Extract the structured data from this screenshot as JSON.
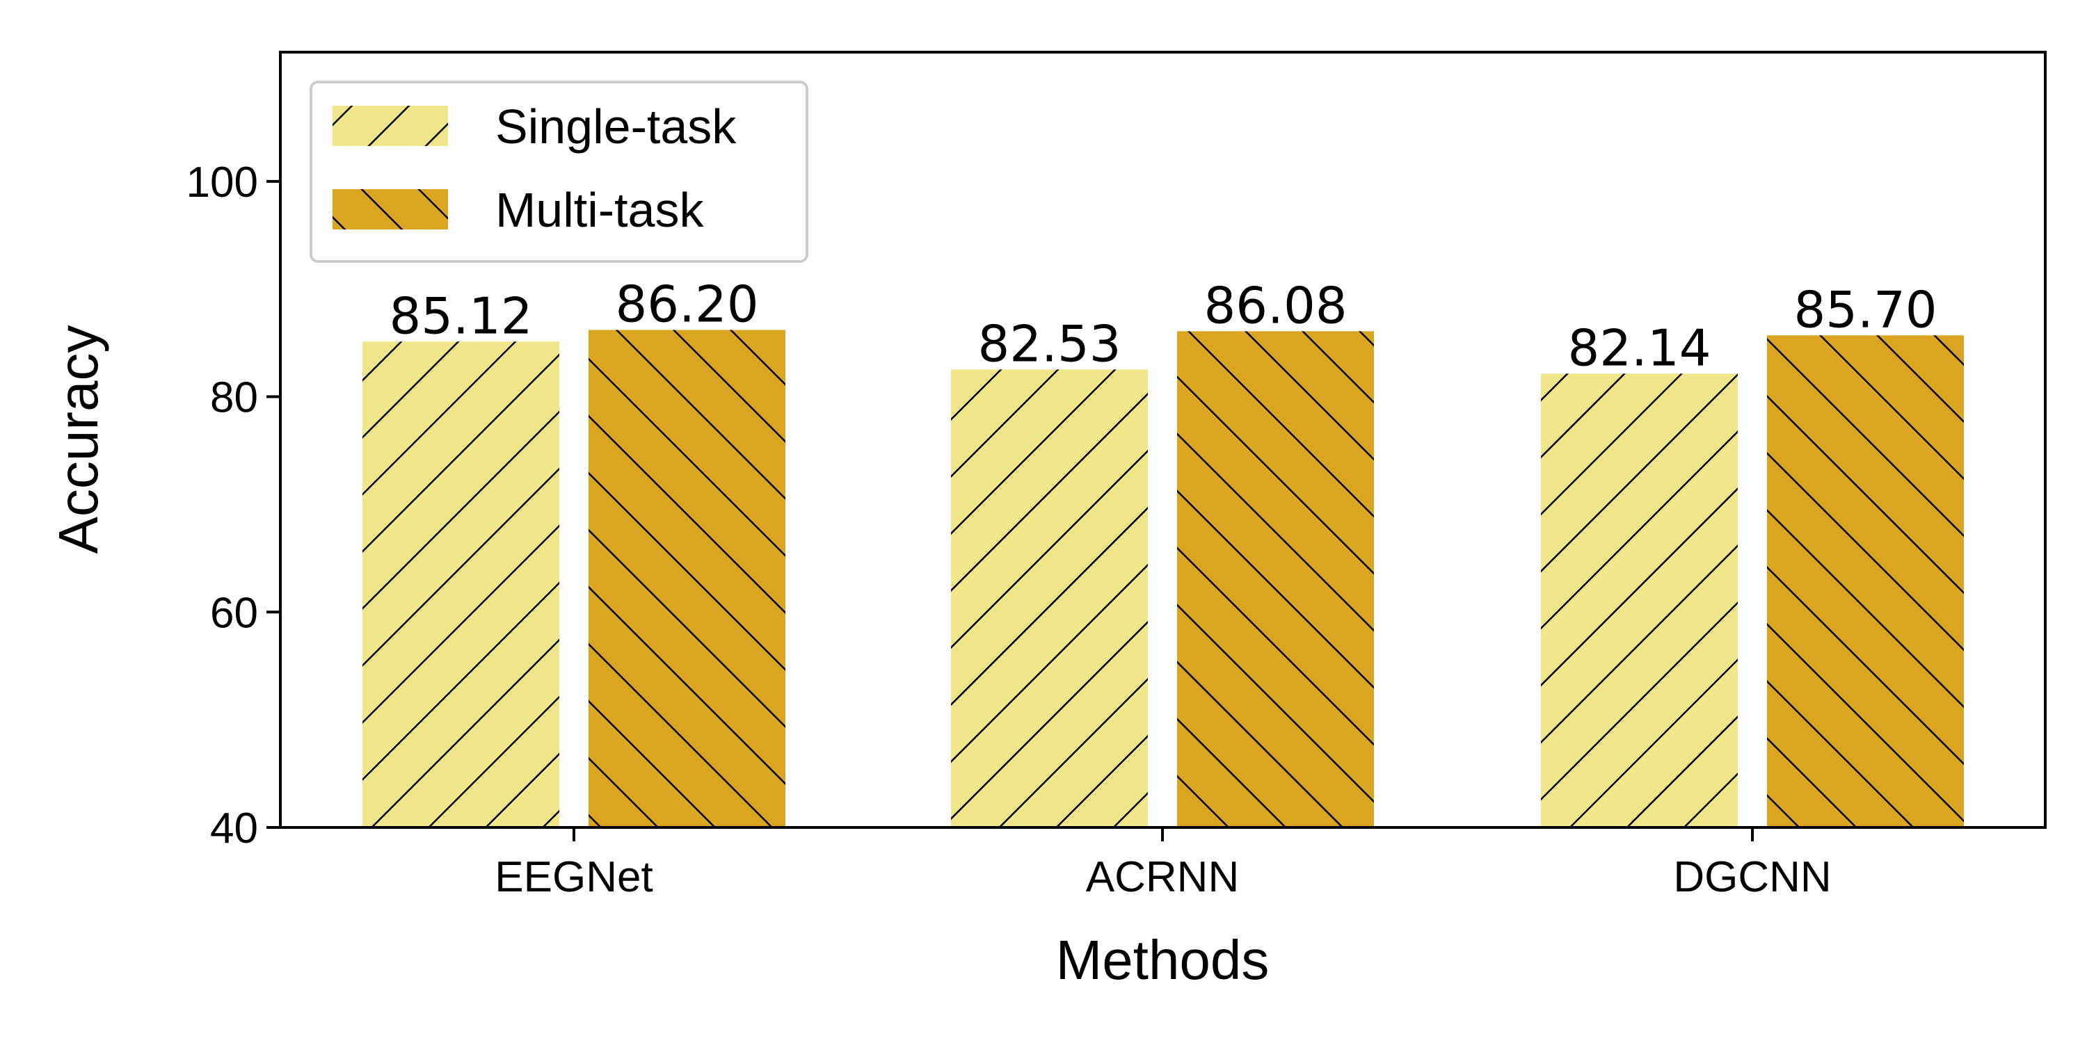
{
  "chart_data": {
    "type": "bar",
    "title": "",
    "xlabel": "Methods",
    "ylabel": "Accuracy",
    "categories": [
      "EEGNet",
      "ACRNN",
      "DGCNN"
    ],
    "series": [
      {
        "name": "Single-task",
        "values": [
          85.12,
          82.53,
          82.14
        ],
        "labels": [
          "85.12",
          "82.53",
          "82.14"
        ],
        "color": "#F0E68C",
        "hatch": "forward-diagonal"
      },
      {
        "name": "Multi-task",
        "values": [
          86.2,
          86.08,
          85.7
        ],
        "labels": [
          "86.20",
          "86.08",
          "85.70"
        ],
        "color": "#DAA520",
        "hatch": "back-diagonal"
      }
    ],
    "ylim": [
      40,
      112
    ],
    "yticks": [
      "40",
      "60",
      "80",
      "100"
    ],
    "grid": false,
    "legend_position": "top-left"
  }
}
